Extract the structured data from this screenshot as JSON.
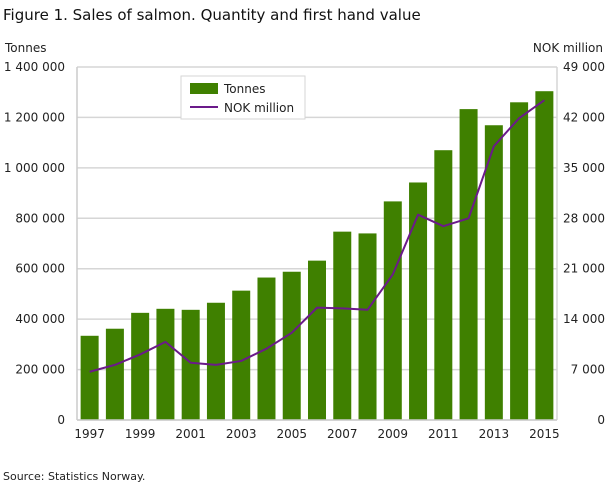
{
  "title": "Figure 1. Sales of salmon. Quantity and first hand value",
  "source": "Source: Statistics Norway.",
  "colors": {
    "bar": "#3f8000",
    "line": "#6b1a8a",
    "grid": "#d6d6d6"
  },
  "chart_data": {
    "type": "bar+line",
    "title": "Figure 1. Sales of salmon. Quantity and first hand value",
    "categories": [
      "1997",
      "1998",
      "1999",
      "2000",
      "2001",
      "2002",
      "2003",
      "2004",
      "2005",
      "2006",
      "2007",
      "2008",
      "2009",
      "2010",
      "2011",
      "2012",
      "2013",
      "2014",
      "2015"
    ],
    "x_tick_labels": [
      "1997",
      "1999",
      "2001",
      "2003",
      "2005",
      "2007",
      "2009",
      "2011",
      "2013",
      "2015"
    ],
    "y_left": {
      "label": "Tonnes",
      "lim": [
        0,
        1400000
      ],
      "ticks": [
        "0",
        "200 000",
        "400 000",
        "600 000",
        "800 000",
        "1 000 000",
        "1 200 000",
        "1 400 000"
      ]
    },
    "y_right": {
      "label": "NOK million",
      "lim": [
        0,
        49000
      ],
      "ticks": [
        "0",
        "7 000",
        "14 000",
        "21 000",
        "28 000",
        "35 000",
        "42 000",
        "49 000"
      ]
    },
    "grid": true,
    "legend_position": "top-left",
    "series": [
      {
        "name": "Tonnes",
        "type": "bar",
        "axis": "left",
        "values": [
          334000,
          362000,
          425000,
          441000,
          437000,
          465000,
          513000,
          565000,
          588000,
          632000,
          747000,
          740000,
          867000,
          942000,
          1070000,
          1233000,
          1169000,
          1260000,
          1304000
        ]
      },
      {
        "name": "NOK million",
        "type": "line",
        "axis": "right",
        "values": [
          6700,
          7650,
          9100,
          10850,
          7950,
          7650,
          8200,
          9900,
          12100,
          15600,
          15500,
          15300,
          20200,
          28500,
          26900,
          28000,
          38000,
          41900,
          44400
        ]
      }
    ]
  }
}
